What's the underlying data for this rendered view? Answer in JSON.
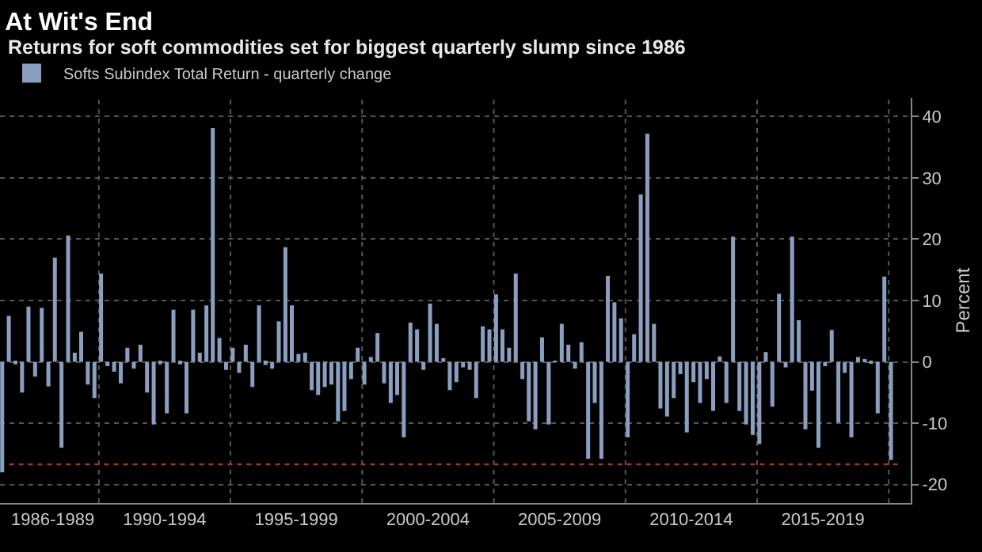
{
  "chart_data": {
    "type": "bar",
    "title": "At Wit's End",
    "subtitle": "Returns for soft commodities set for biggest quarterly slump since 1986",
    "ylabel": "Percent",
    "x": [
      "1986-05",
      "1986-08",
      "1986-11",
      "1987-02",
      "1987-05",
      "1987-08",
      "1987-11",
      "1988-02",
      "1988-05",
      "1988-08",
      "1988-11",
      "1989-02",
      "1989-05",
      "1989-08",
      "1989-11",
      "1990-02",
      "1990-05",
      "1990-08",
      "1990-11",
      "1991-02",
      "1991-05",
      "1991-08",
      "1991-11",
      "1992-02",
      "1992-05",
      "1992-08",
      "1992-11",
      "1993-02",
      "1993-05",
      "1993-08",
      "1993-11",
      "1994-02",
      "1994-05",
      "1994-08",
      "1994-11",
      "1995-02",
      "1995-05",
      "1995-08",
      "1995-11",
      "1996-02",
      "1996-05",
      "1996-08",
      "1996-11",
      "1997-02",
      "1997-05",
      "1997-08",
      "1997-11",
      "1998-02",
      "1998-05",
      "1998-08",
      "1998-11",
      "1999-02",
      "1999-05",
      "1999-08",
      "1999-11",
      "2000-02",
      "2000-05",
      "2000-08",
      "2000-11",
      "2001-02",
      "2001-05",
      "2001-08",
      "2001-11",
      "2002-02",
      "2002-05",
      "2002-08",
      "2002-11",
      "2003-02",
      "2003-05",
      "2003-08",
      "2003-11",
      "2004-02",
      "2004-05",
      "2004-08",
      "2004-11",
      "2005-02",
      "2005-05",
      "2005-08",
      "2005-11",
      "2006-02",
      "2006-05",
      "2006-08",
      "2006-11",
      "2007-02",
      "2007-05",
      "2007-08",
      "2007-11",
      "2008-02",
      "2008-05",
      "2008-08",
      "2008-11",
      "2009-02",
      "2009-05",
      "2009-08",
      "2009-11",
      "2010-02",
      "2010-05",
      "2010-08",
      "2010-11",
      "2011-02",
      "2011-05",
      "2011-08",
      "2011-11",
      "2012-02",
      "2012-05",
      "2012-08",
      "2012-11",
      "2013-02",
      "2013-05",
      "2013-08",
      "2013-11",
      "2014-02",
      "2014-05",
      "2014-08",
      "2014-11",
      "2015-02",
      "2015-05",
      "2015-08",
      "2015-11",
      "2016-02",
      "2016-05",
      "2016-08",
      "2016-11",
      "2017-02",
      "2017-05",
      "2017-08",
      "2017-11",
      "2018-02",
      "2018-05",
      "2018-08",
      "2018-11",
      "2019-02",
      "2019-05",
      "2019-08",
      "2019-11",
      "2020-02"
    ],
    "series": [
      {
        "name": "Softs Subindex Total Return - quarterly change",
        "color": "#8a9fc0",
        "values": [
          -18,
          7.5,
          -0.4,
          -5,
          9,
          -2.4,
          8.8,
          -4,
          17,
          -14,
          20.6,
          1.5,
          4.9,
          -3.7,
          -5.9,
          14.4,
          -0.7,
          -1.6,
          -3.5,
          2.3,
          -1.1,
          2.8,
          -5,
          -10.2,
          -0.4,
          -8.4,
          8.5,
          -0.4,
          -8.4,
          8.5,
          1.5,
          9.2,
          38.1,
          3.9,
          -1.3,
          2.3,
          -1.8,
          2.8,
          -4.1,
          9.2,
          -0.5,
          -1.1,
          6.6,
          18.7,
          9.2,
          1.3,
          1.5,
          -4.6,
          -5.4,
          -4.1,
          -3.7,
          -9.7,
          -8,
          -2.8,
          2.3,
          -3.7,
          0.8,
          4.7,
          -3.5,
          -6.7,
          -5.4,
          -12.3,
          6.4,
          5.3,
          -1.3,
          9.5,
          6.2,
          0.6,
          -4.6,
          -3.3,
          -0.9,
          -1.3,
          -5.9,
          5.8,
          5.3,
          11,
          5.3,
          2.3,
          14.4,
          -2.8,
          -9.7,
          -11,
          4,
          -10.2,
          0.2,
          6.2,
          2.8,
          -1.1,
          3.2,
          -15.8,
          -6.7,
          -15.8,
          14,
          9.7,
          7.1,
          -12.3,
          4.5,
          27.3,
          37.2,
          6.2,
          -7.6,
          -8.9,
          -5.9,
          -2,
          -11.5,
          -3.3,
          -6.7,
          -2.8,
          -8,
          0.9,
          -6.7,
          20.4,
          -8,
          -10.2,
          -11.9,
          -13.4,
          1.6,
          -7.3,
          11.1,
          -0.9,
          20.4,
          6.8,
          -11,
          -4.7,
          -14,
          -0.7,
          5.2,
          -9.9,
          -1.8,
          -12.3,
          0.8,
          0.4,
          -0.3,
          -8.4,
          13.9,
          -16
        ]
      }
    ],
    "xlim": [
      "1986-04",
      "2020-11"
    ],
    "xticks": [
      {
        "value": "1988-04",
        "label": "1986-1989"
      },
      {
        "value": "1990-01",
        "label": null
      },
      {
        "value": "1992-07",
        "label": "1990-1994"
      },
      {
        "value": "1995-01",
        "label": null
      },
      {
        "value": "1997-07",
        "label": "1995-1999"
      },
      {
        "value": "2000-01",
        "label": null
      },
      {
        "value": "2002-07",
        "label": "2000-2004"
      },
      {
        "value": "2005-01",
        "label": null
      },
      {
        "value": "2007-07",
        "label": "2005-2009"
      },
      {
        "value": "2010-01",
        "label": null
      },
      {
        "value": "2012-07",
        "label": "2010-2014"
      },
      {
        "value": "2015-01",
        "label": null
      },
      {
        "value": "2017-07",
        "label": "2015-2019"
      },
      {
        "value": "2020-01",
        "label": null
      }
    ],
    "ylim": [
      -23,
      43
    ],
    "yticks": [
      -20,
      -10,
      0,
      10,
      20,
      30,
      40
    ],
    "ref_lines": [
      {
        "axis": "y",
        "value": -16.7,
        "color": "#b03030",
        "line_style": "dotted"
      }
    ],
    "grid": true,
    "legend": "top left"
  }
}
